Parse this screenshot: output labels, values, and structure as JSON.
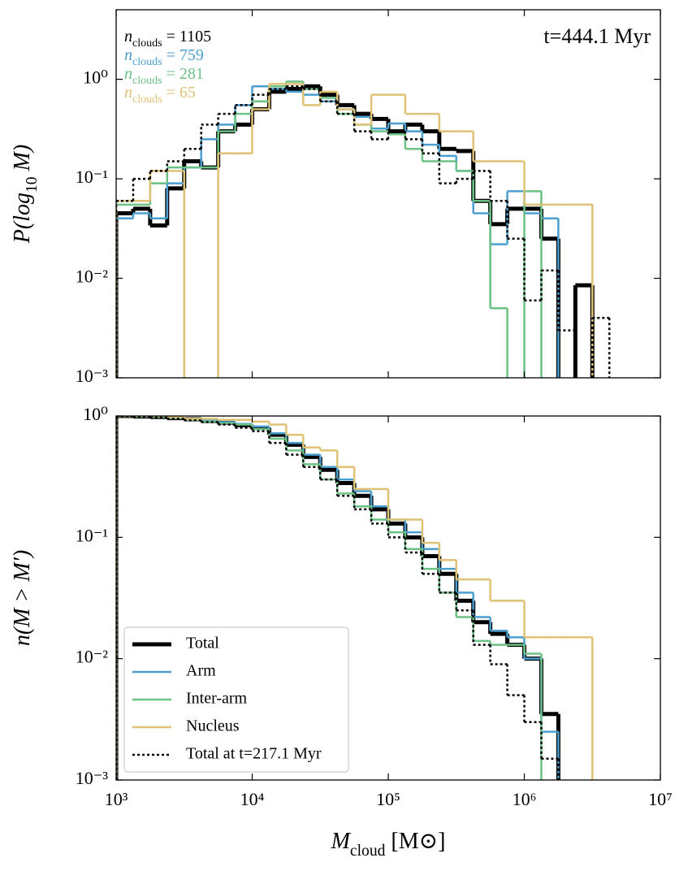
{
  "chart_data": [
    {
      "type": "histogram",
      "ylabel": [
        {
          "t": "P(log",
          "italic": true
        },
        {
          "t": "10",
          "sub": true
        },
        {
          "t": " M)",
          "italic": true
        }
      ],
      "annotations": [
        {
          "parts": [
            {
              "t": "n",
              "italic": true
            },
            {
              "t": "clouds",
              "sub": true
            },
            {
              "t": " = 1105"
            }
          ],
          "color": "#000000"
        },
        {
          "parts": [
            {
              "t": "n",
              "italic": true
            },
            {
              "t": "clouds",
              "sub": true
            },
            {
              "t": " = 759"
            }
          ],
          "color": "#4a9fd0"
        },
        {
          "parts": [
            {
              "t": "n",
              "italic": true
            },
            {
              "t": "clouds",
              "sub": true
            },
            {
              "t": " = 281"
            }
          ],
          "color": "#6cc185"
        },
        {
          "parts": [
            {
              "t": "n",
              "italic": true
            },
            {
              "t": "clouds",
              "sub": true
            },
            {
              "t": " = 65"
            }
          ],
          "color": "#e0c276"
        }
      ],
      "time_label": "t=444.1 Myr",
      "xlog": true,
      "ylog": true,
      "xlim": [
        1000,
        10000000
      ],
      "ylim": [
        0.001,
        5
      ],
      "xticks": [
        1000,
        10000,
        100000,
        1000000,
        10000000
      ],
      "yticks": [
        {
          "value": 0.001,
          "label": "10⁻³"
        },
        {
          "value": 0.01,
          "label": "10⁻²"
        },
        {
          "value": 0.1,
          "label": "10⁻¹"
        },
        {
          "value": 1,
          "label": "10⁰"
        }
      ],
      "bins": [
        1000,
        1334,
        1778,
        2371,
        3162,
        4217,
        5623,
        7499,
        10000,
        13335,
        17783,
        23714,
        31623,
        42170,
        56234,
        74989,
        100000,
        133352,
        177828,
        237137,
        316228,
        421697,
        562341,
        749894,
        1000000,
        1333521,
        1778279,
        2371374,
        3162278,
        4216965
      ],
      "series": [
        {
          "color": "#000000",
          "linewidth": 5,
          "linestyle": "solid",
          "values": [
            0.045,
            0.05,
            0.034,
            0.08,
            0.15,
            0.13,
            0.3,
            0.35,
            0.5,
            0.75,
            0.8,
            0.85,
            0.7,
            0.55,
            0.45,
            0.4,
            0.3,
            0.35,
            0.3,
            0.2,
            0.19,
            0.06,
            0.035,
            0.05,
            0.05,
            0.025,
            null,
            0.0085,
            null
          ]
        },
        {
          "color": "#4a9fd0",
          "linewidth": 2.5,
          "linestyle": "solid",
          "values": [
            0.04,
            0.045,
            0.04,
            0.09,
            0.13,
            0.25,
            0.35,
            0.55,
            0.85,
            0.8,
            0.75,
            0.7,
            0.6,
            0.5,
            0.42,
            0.32,
            0.36,
            0.3,
            0.22,
            0.17,
            0.12,
            0.045,
            0.022,
            0.075,
            0.045,
            0.04,
            null,
            null,
            null
          ]
        },
        {
          "color": "#6cc185",
          "linewidth": 2.5,
          "linestyle": "solid",
          "values": [
            0.055,
            0.055,
            0.09,
            0.13,
            0.13,
            0.13,
            0.3,
            0.45,
            0.6,
            0.85,
            0.95,
            0.8,
            0.65,
            0.45,
            0.35,
            0.3,
            0.28,
            0.2,
            0.15,
            0.15,
            0.12,
            0.06,
            0.005,
            null,
            0.075,
            null,
            null,
            null,
            null
          ]
        },
        {
          "color": "#e0c276",
          "linewidth": 2.5,
          "linestyle": "solid",
          "values": [
            0.06,
            0.06,
            0.12,
            0.12,
            null,
            null,
            0.18,
            0.18,
            0.5,
            0.9,
            0.9,
            0.55,
            0.75,
            0.5,
            0.35,
            0.7,
            0.7,
            0.45,
            0.45,
            0.3,
            0.3,
            0.15,
            0.15,
            0.15,
            0.055,
            0.055,
            0.055,
            0.055,
            null
          ]
        },
        {
          "color": "#000000",
          "linewidth": 2.5,
          "linestyle": "dotted",
          "values": [
            0.06,
            0.1,
            0.12,
            0.15,
            0.2,
            0.35,
            0.45,
            0.55,
            0.7,
            0.8,
            0.85,
            0.8,
            0.6,
            0.45,
            0.3,
            0.25,
            0.3,
            0.25,
            0.18,
            0.09,
            0.1,
            0.12,
            0.06,
            0.025,
            0.006,
            0.012,
            0.003,
            null,
            0.004
          ]
        }
      ]
    },
    {
      "type": "histogram",
      "ylabel": [
        {
          "t": "n(M > M′)",
          "italic": true
        }
      ],
      "xlabel": [
        {
          "t": "M",
          "italic": true
        },
        {
          "t": "cloud",
          "sub": true
        },
        {
          "t": " [M⊙]"
        }
      ],
      "xlog": true,
      "ylog": true,
      "xlim": [
        1000,
        10000000
      ],
      "ylim": [
        0.001,
        1
      ],
      "xticks": [
        {
          "value": 1000,
          "label": "10³"
        },
        {
          "value": 10000,
          "label": "10⁴"
        },
        {
          "value": 100000,
          "label": "10⁵"
        },
        {
          "value": 1000000,
          "label": "10⁶"
        },
        {
          "value": 10000000,
          "label": "10⁷"
        }
      ],
      "yticks": [
        {
          "value": 0.001,
          "label": "10⁻³"
        },
        {
          "value": 0.01,
          "label": "10⁻²"
        },
        {
          "value": 0.1,
          "label": "10⁻¹"
        },
        {
          "value": 1,
          "label": "10⁰"
        }
      ],
      "legend": "lower left",
      "bins": [
        1000,
        1334,
        1778,
        2371,
        3162,
        4217,
        5623,
        7499,
        10000,
        13335,
        17783,
        23714,
        31623,
        42170,
        56234,
        74989,
        100000,
        133352,
        177828,
        237137,
        316228,
        421697,
        562341,
        749894,
        1000000,
        1333521,
        1778279,
        2371374,
        3162278,
        4216965
      ],
      "series": [
        {
          "name": "Total",
          "color": "#000000",
          "linewidth": 5,
          "linestyle": "solid",
          "values": [
            1,
            0.99,
            0.98,
            0.96,
            0.94,
            0.91,
            0.88,
            0.84,
            0.8,
            0.7,
            0.58,
            0.46,
            0.36,
            0.28,
            0.22,
            0.17,
            0.13,
            0.1,
            0.07,
            0.05,
            0.03,
            0.02,
            0.016,
            0.013,
            0.01,
            0.0035,
            null,
            null,
            null
          ]
        },
        {
          "name": "Arm",
          "color": "#4a9fd0",
          "linewidth": 2.5,
          "linestyle": "solid",
          "values": [
            1,
            0.99,
            0.98,
            0.96,
            0.94,
            0.92,
            0.89,
            0.86,
            0.82,
            0.72,
            0.6,
            0.48,
            0.38,
            0.3,
            0.24,
            0.18,
            0.14,
            0.11,
            0.08,
            0.055,
            0.035,
            0.022,
            0.017,
            0.015,
            0.01,
            0.0025,
            null,
            null,
            null
          ]
        },
        {
          "name": "Inter-arm",
          "color": "#6cc185",
          "linewidth": 2.5,
          "linestyle": "solid",
          "values": [
            1,
            0.99,
            0.98,
            0.96,
            0.93,
            0.9,
            0.87,
            0.85,
            0.78,
            0.65,
            0.52,
            0.4,
            0.3,
            0.23,
            0.18,
            0.14,
            0.11,
            0.08,
            0.055,
            0.035,
            0.022,
            0.014,
            0.013,
            0.013,
            0.011,
            null,
            null,
            null,
            null
          ]
        },
        {
          "name": "Nucleus",
          "color": "#e0c276",
          "linewidth": 2.5,
          "linestyle": "solid",
          "values": [
            1,
            1,
            1,
            0.98,
            0.95,
            0.95,
            0.93,
            0.93,
            0.9,
            0.85,
            0.7,
            0.55,
            0.52,
            0.38,
            0.25,
            0.25,
            0.14,
            0.14,
            0.09,
            0.065,
            0.045,
            0.045,
            0.03,
            0.03,
            0.015,
            0.015,
            0.015,
            0.015,
            null
          ]
        },
        {
          "name": "Total at t=217.1 Myr",
          "color": "#000000",
          "linewidth": 2.5,
          "linestyle": "dotted",
          "values": [
            1,
            0.99,
            0.97,
            0.95,
            0.92,
            0.89,
            0.85,
            0.8,
            0.75,
            0.6,
            0.48,
            0.38,
            0.3,
            0.22,
            0.17,
            0.13,
            0.1,
            0.075,
            0.05,
            0.035,
            0.025,
            0.013,
            0.009,
            0.005,
            0.003,
            0.0015,
            null,
            null,
            null
          ]
        }
      ]
    }
  ]
}
